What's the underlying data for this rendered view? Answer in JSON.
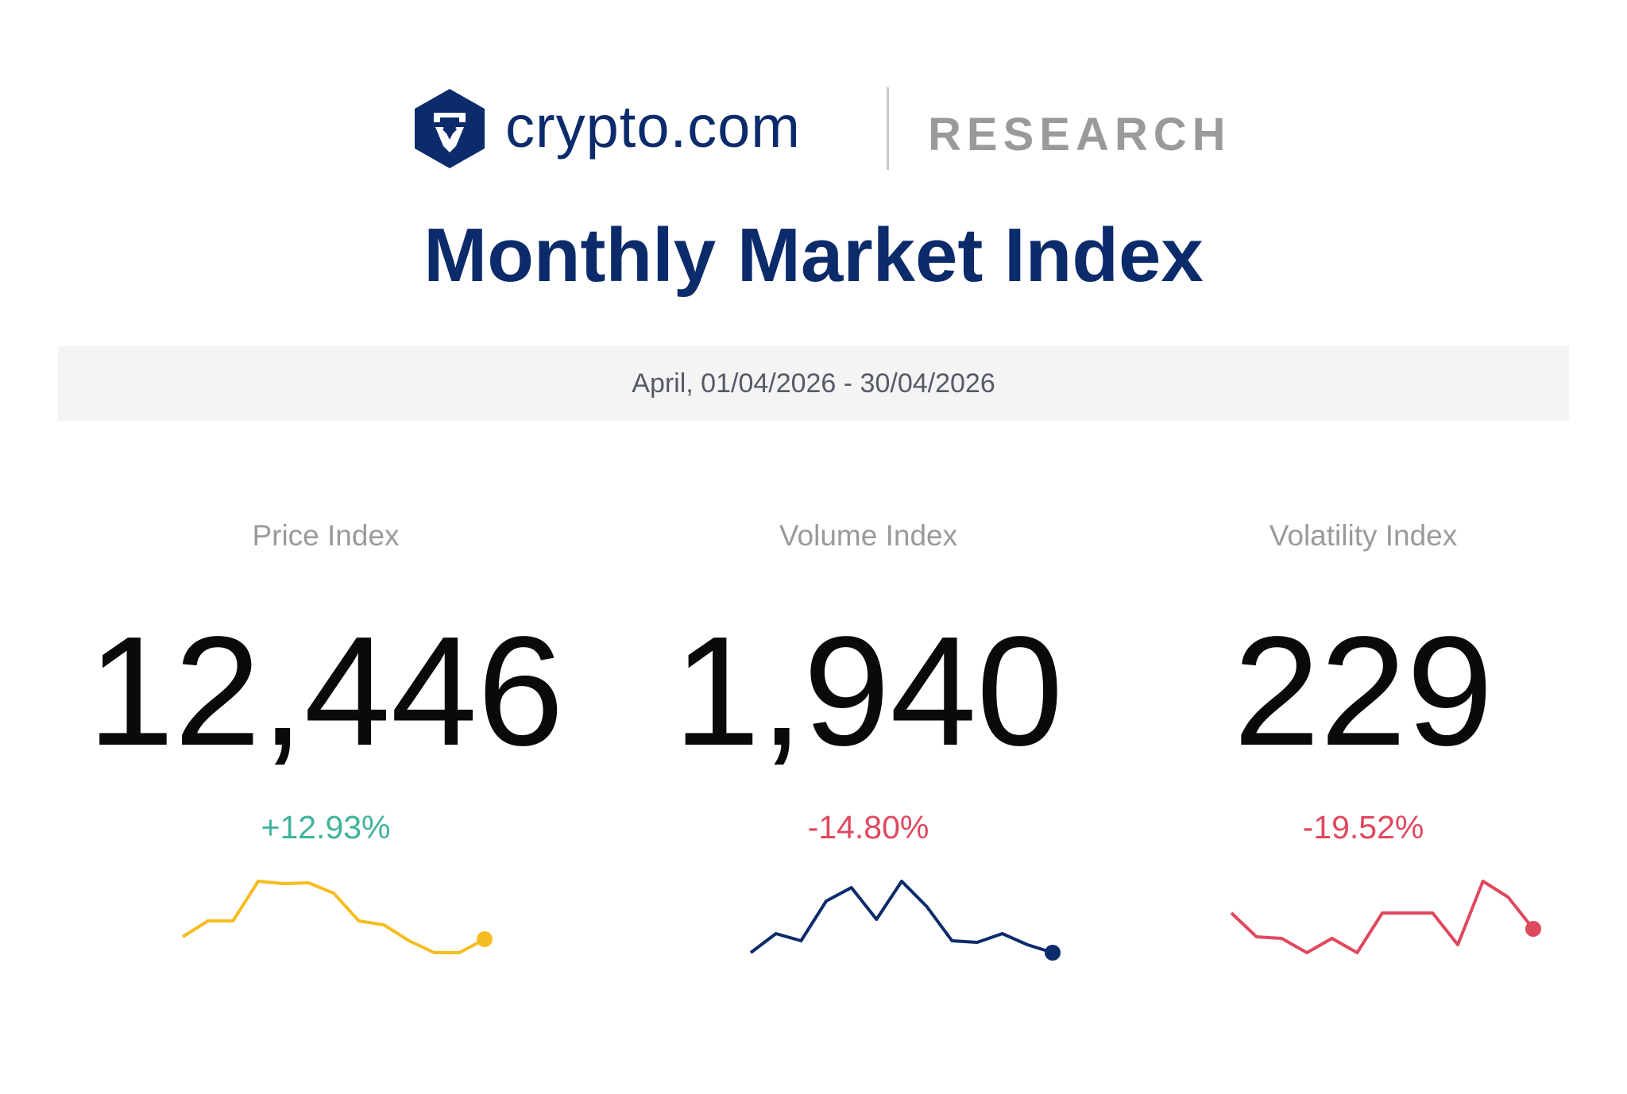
{
  "header": {
    "brand_name": "crypto.com",
    "section_label": "RESEARCH",
    "logo_icon": "lion-hexagon-logo-icon"
  },
  "page_title": "Monthly Market Index",
  "date_range": "April, 01/04/2026 - 30/04/2026",
  "colors": {
    "navy": "#0b2b6b",
    "positive": "#3fb39b",
    "negative": "#e0485f",
    "price_line": "#f5bd1f",
    "volume_line": "#0b2b6b",
    "volatility_line": "#e0485f"
  },
  "metrics": [
    {
      "label": "Price Index",
      "value": "12,446",
      "change": "+12.93%",
      "trend": "positive"
    },
    {
      "label": "Volume Index",
      "value": "1,940",
      "change": "-14.80%",
      "trend": "negative"
    },
    {
      "label": "Volatility Index",
      "value": "229",
      "change": "-19.52%",
      "trend": "negative"
    }
  ],
  "chart_data": [
    {
      "type": "line",
      "title": "",
      "series": [
        {
          "color": "#f5bd1f",
          "values": [
            20,
            40,
            40,
            90,
            87,
            88,
            75,
            40,
            35,
            15,
            0,
            0,
            17
          ]
        }
      ]
    },
    {
      "type": "line",
      "title": "",
      "series": [
        {
          "color": "#0b2b6b",
          "values": [
            0,
            24,
            15,
            65,
            82,
            42,
            90,
            58,
            15,
            13,
            24,
            10,
            0
          ]
        }
      ]
    },
    {
      "type": "line",
      "title": "",
      "series": [
        {
          "color": "#e0485f",
          "values": [
            50,
            20,
            18,
            0,
            18,
            0,
            50,
            50,
            50,
            10,
            90,
            70,
            30
          ]
        }
      ]
    }
  ]
}
